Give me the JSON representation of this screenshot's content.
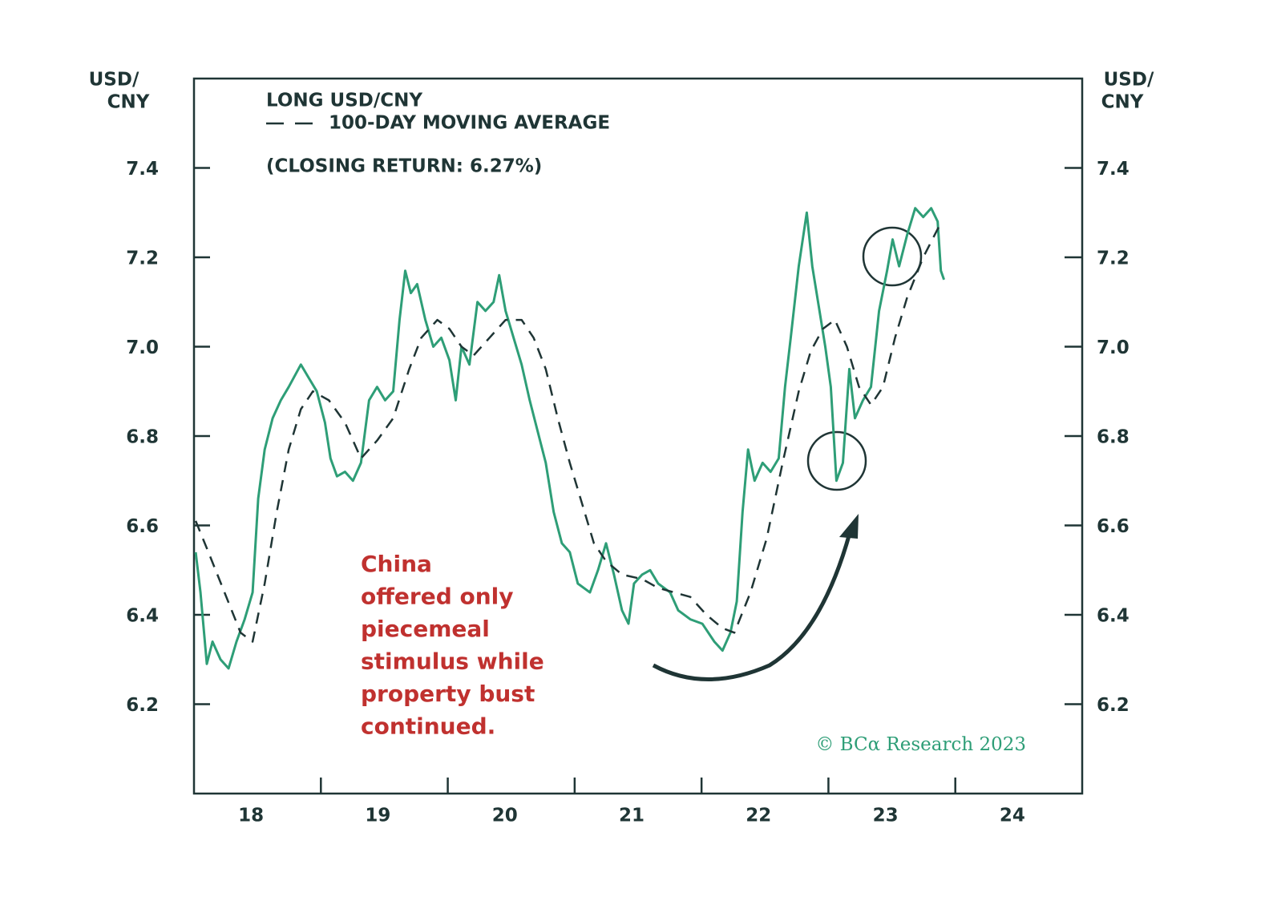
{
  "chart_data": {
    "type": "line",
    "y_axis_label": [
      "USD/",
      "CNY"
    ],
    "y2_axis_label": [
      "USD/",
      "CNY"
    ],
    "subtitle": "(CLOSING RETURN: 6.27%)",
    "annotation": [
      "China",
      "offered only",
      "piecemeal",
      "stimulus while",
      "property bust",
      "continued."
    ],
    "source": "© BCα Research 2023",
    "xlim": [
      2018,
      2025
    ],
    "xticks": [
      2019,
      2020,
      2021,
      2022,
      2023,
      2024
    ],
    "x_tick_labels": [
      "18",
      "19",
      "20",
      "21",
      "22",
      "23",
      "24"
    ],
    "ylim": [
      6.0,
      7.6
    ],
    "yticks": [
      6.2,
      6.4,
      6.6,
      6.8,
      {
        "value": 7,
        "label": "7.0"
      },
      7.2,
      7.4
    ],
    "series": [
      {
        "name": "LONG USD/CNY",
        "color": "#2e9e77",
        "style": "solid",
        "x": [
          2018.013,
          2018.051,
          2018.101,
          2018.146,
          2018.209,
          2018.272,
          2018.335,
          2018.399,
          2018.462,
          2018.506,
          2018.557,
          2018.62,
          2018.684,
          2018.747,
          2018.842,
          2018.905,
          2018.968,
          2019.032,
          2019.076,
          2019.127,
          2019.19,
          2019.253,
          2019.316,
          2019.38,
          2019.443,
          2019.506,
          2019.57,
          2019.62,
          2019.665,
          2019.709,
          2019.759,
          2019.823,
          2019.886,
          2019.949,
          2020.013,
          2020.063,
          2020.108,
          2020.171,
          2020.234,
          2020.297,
          2020.361,
          2020.405,
          2020.456,
          2020.519,
          2020.582,
          2020.646,
          2020.709,
          2020.772,
          2020.835,
          2020.899,
          2020.962,
          2021.025,
          2021.12,
          2021.184,
          2021.247,
          2021.31,
          2021.373,
          2021.424,
          2021.468,
          2021.532,
          2021.595,
          2021.658,
          2021.753,
          2021.816,
          2021.911,
          2022.006,
          2022.101,
          2022.165,
          2022.228,
          2022.278,
          2022.323,
          2022.367,
          2022.418,
          2022.481,
          2022.544,
          2022.608,
          2022.658,
          2022.703,
          2022.766,
          2022.829,
          2022.873,
          2022.924,
          2022.975,
          2023.019,
          2023.063,
          2023.114,
          2023.165,
          2023.209,
          2023.272,
          2023.335,
          2023.399,
          2023.462,
          2023.506,
          2023.557,
          2023.62,
          2023.684,
          2023.747,
          2023.81,
          2023.861,
          2023.886,
          2023.911
        ],
        "values": [
          6.54,
          6.45,
          6.29,
          6.34,
          6.3,
          6.28,
          6.34,
          6.39,
          6.45,
          6.66,
          6.77,
          6.84,
          6.88,
          6.91,
          6.96,
          6.93,
          6.9,
          6.83,
          6.75,
          6.71,
          6.72,
          6.7,
          6.74,
          6.88,
          6.91,
          6.88,
          6.9,
          7.06,
          7.17,
          7.12,
          7.14,
          7.06,
          7.0,
          7.02,
          6.97,
          6.88,
          7.0,
          6.96,
          7.1,
          7.08,
          7.1,
          7.16,
          7.08,
          7.02,
          6.96,
          6.88,
          6.81,
          6.74,
          6.63,
          6.56,
          6.54,
          6.47,
          6.45,
          6.5,
          6.56,
          6.49,
          6.41,
          6.38,
          6.47,
          6.49,
          6.5,
          6.47,
          6.45,
          6.41,
          6.39,
          6.38,
          6.34,
          6.32,
          6.36,
          6.43,
          6.63,
          6.77,
          6.7,
          6.74,
          6.72,
          6.75,
          6.91,
          7.02,
          7.18,
          7.3,
          7.18,
          7.09,
          7.0,
          6.91,
          6.7,
          6.74,
          6.95,
          6.84,
          6.88,
          6.91,
          7.08,
          7.17,
          7.24,
          7.18,
          7.25,
          7.31,
          7.29,
          7.31,
          7.28,
          7.17,
          7.15
        ]
      },
      {
        "name": "100-DAY MOVING AVERAGE",
        "color": "#1f3535",
        "style": "dashed",
        "x": [
          2018.013,
          2018.114,
          2018.241,
          2018.367,
          2018.462,
          2018.557,
          2018.652,
          2018.747,
          2018.842,
          2018.937,
          2019.063,
          2019.19,
          2019.316,
          2019.443,
          2019.57,
          2019.696,
          2019.791,
          2019.918,
          2020.013,
          2020.108,
          2020.203,
          2020.329,
          2020.456,
          2020.582,
          2020.677,
          2020.772,
          2020.867,
          2020.962,
          2021.057,
          2021.152,
          2021.247,
          2021.373,
          2021.532,
          2021.658,
          2021.785,
          2021.911,
          2022.038,
          2022.165,
          2022.259,
          2022.386,
          2022.513,
          2022.639,
          2022.766,
          2022.861,
          2022.956,
          2023.051,
          2023.146,
          2023.241,
          2023.335,
          2023.43,
          2023.525,
          2023.62,
          2023.747,
          2023.873
        ],
        "values": [
          6.61,
          6.54,
          6.45,
          6.36,
          6.34,
          6.47,
          6.63,
          6.77,
          6.86,
          6.9,
          6.88,
          6.83,
          6.75,
          6.79,
          6.84,
          6.95,
          7.02,
          7.06,
          7.04,
          7.0,
          6.98,
          7.02,
          7.06,
          7.06,
          7.02,
          6.95,
          6.84,
          6.74,
          6.65,
          6.56,
          6.52,
          6.49,
          6.48,
          6.46,
          6.45,
          6.44,
          6.4,
          6.37,
          6.36,
          6.45,
          6.57,
          6.74,
          6.9,
          6.99,
          7.04,
          7.06,
          7.0,
          6.91,
          6.87,
          6.91,
          7.02,
          7.11,
          7.2,
          7.27
        ]
      }
    ]
  }
}
